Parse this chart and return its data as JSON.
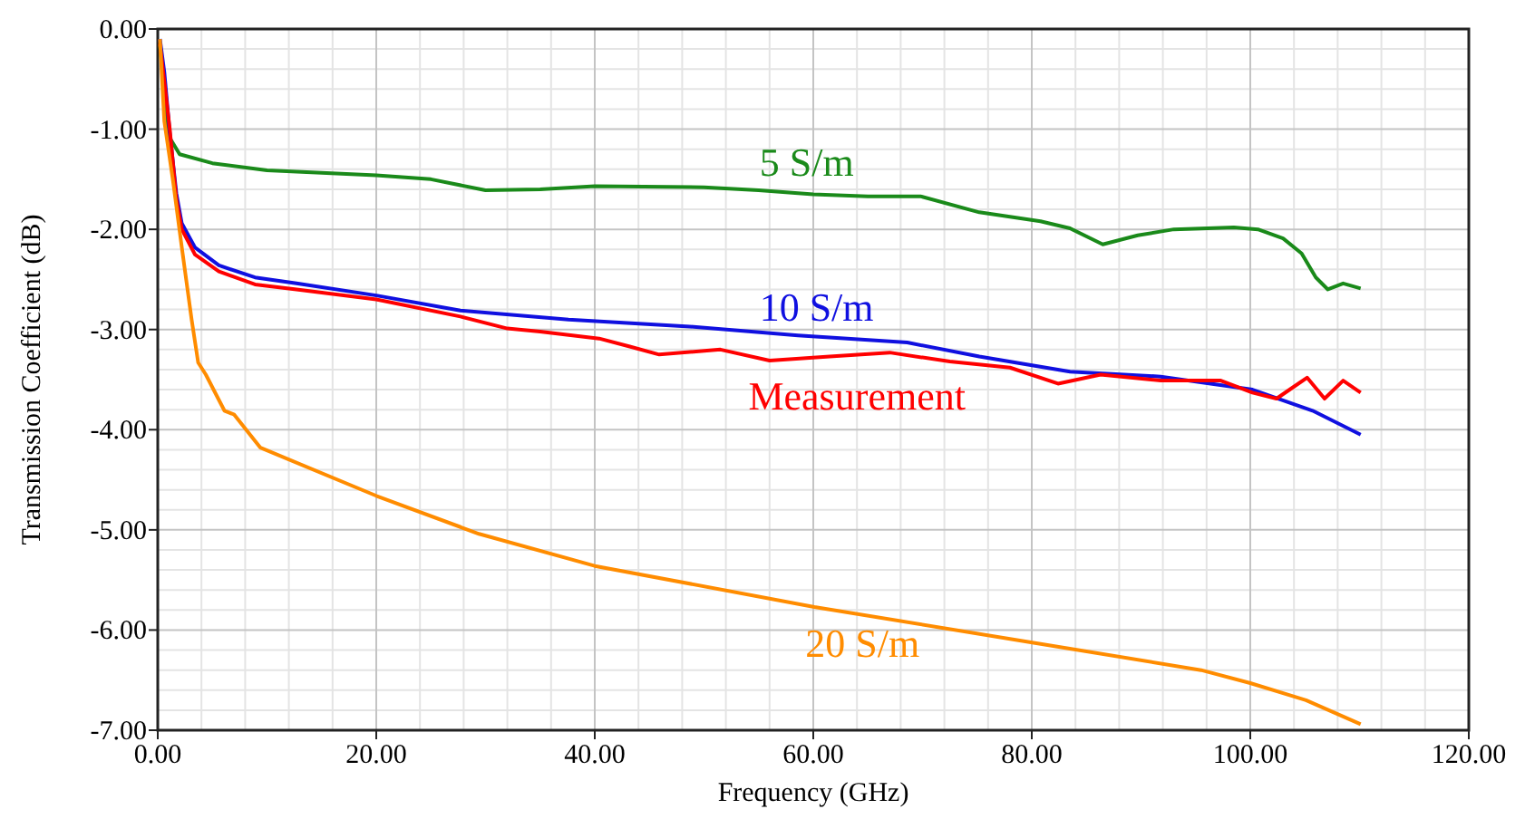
{
  "chart_data": {
    "type": "line",
    "xlabel": "Frequency (GHz)",
    "ylabel": "Transmission Coefficient (dB)",
    "xlim": [
      0,
      120
    ],
    "ylim": [
      -7,
      0
    ],
    "xticks": [
      {
        "value": 0,
        "label": "0.00"
      },
      {
        "value": 20,
        "label": "20.00"
      },
      {
        "value": 40,
        "label": "40.00"
      },
      {
        "value": 60,
        "label": "60.00"
      },
      {
        "value": 80,
        "label": "80.00"
      },
      {
        "value": 100,
        "label": "100.00"
      },
      {
        "value": 120,
        "label": "120.00"
      }
    ],
    "yticks": [
      {
        "value": 0,
        "label": "0.00"
      },
      {
        "value": -1,
        "label": "-1.00"
      },
      {
        "value": -2,
        "label": "-2.00"
      },
      {
        "value": -3,
        "label": "-3.00"
      },
      {
        "value": -4,
        "label": "-4.00"
      },
      {
        "value": -5,
        "label": "-5.00"
      },
      {
        "value": -6,
        "label": "-6.00"
      },
      {
        "value": -7,
        "label": "-7.00"
      }
    ],
    "grid": true,
    "marker": "none",
    "line_style": "solid",
    "series": [
      {
        "name": "5 S/m",
        "color": "#1a8a1a",
        "x": [
          0.2,
          0.6,
          1,
          2,
          5,
          10,
          20,
          25,
          30,
          35,
          40,
          50,
          55,
          60,
          65,
          69.8,
          75.2,
          80.8,
          83.5,
          86.5,
          89.7,
          93,
          98.5,
          100.7,
          103,
          104.7,
          106,
          107.1,
          108.5,
          110.1
        ],
        "values": [
          -0.16,
          -0.6,
          -1.07,
          -1.25,
          -1.34,
          -1.41,
          -1.46,
          -1.5,
          -1.61,
          -1.6,
          -1.57,
          -1.58,
          -1.61,
          -1.65,
          -1.67,
          -1.67,
          -1.83,
          -1.92,
          -1.99,
          -2.15,
          -2.06,
          -2.0,
          -1.98,
          -2.0,
          -2.09,
          -2.24,
          -2.48,
          -2.6,
          -2.54,
          -2.59
        ]
      },
      {
        "name": "10 S/m",
        "color": "#1010e0",
        "x": [
          0.2,
          0.6,
          1.1,
          1.7,
          2.2,
          3.4,
          5.6,
          8.9,
          12.7,
          20,
          27.7,
          37.6,
          48.7,
          58.6,
          68.6,
          75.2,
          83.5,
          91.8,
          100.2,
          105.7,
          110.1
        ],
        "values": [
          -0.1,
          -0.43,
          -1.04,
          -1.64,
          -1.94,
          -2.18,
          -2.36,
          -2.48,
          -2.54,
          -2.66,
          -2.81,
          -2.9,
          -2.97,
          -3.06,
          -3.13,
          -3.27,
          -3.42,
          -3.47,
          -3.6,
          -3.81,
          -4.05
        ]
      },
      {
        "name": "Measurement",
        "color": "#ff0000",
        "x": [
          0.2,
          1.1,
          1.7,
          2.2,
          3.4,
          5.6,
          8.9,
          12.7,
          20,
          27.7,
          32,
          35,
          40.4,
          43.2,
          45.9,
          51.5,
          56,
          61.5,
          67,
          72.5,
          78,
          82.4,
          86.3,
          91.8,
          97.3,
          100.2,
          102.4,
          104,
          105.2,
          106.8,
          108.5,
          110.1
        ],
        "values": [
          -0.15,
          -1.0,
          -1.7,
          -2.0,
          -2.25,
          -2.42,
          -2.55,
          -2.6,
          -2.7,
          -2.87,
          -2.99,
          -3.02,
          -3.09,
          -3.17,
          -3.25,
          -3.2,
          -3.31,
          -3.27,
          -3.23,
          -3.32,
          -3.38,
          -3.54,
          -3.45,
          -3.51,
          -3.51,
          -3.63,
          -3.69,
          -3.57,
          -3.48,
          -3.69,
          -3.51,
          -3.63
        ]
      },
      {
        "name": "20 S/m",
        "color": "#ff8c00",
        "x": [
          0.2,
          0.6,
          1.4,
          2.2,
          3.1,
          3.7,
          4.4,
          6.1,
          7,
          9.4,
          20,
          29.4,
          40,
          60.1,
          80.3,
          95.5,
          100,
          105.1,
          110.1
        ],
        "values": [
          -0.1,
          -0.92,
          -1.52,
          -2.18,
          -2.9,
          -3.33,
          -3.45,
          -3.81,
          -3.85,
          -4.18,
          -4.66,
          -5.04,
          -5.36,
          -5.77,
          -6.13,
          -6.4,
          -6.53,
          -6.7,
          -6.94
        ]
      }
    ]
  }
}
